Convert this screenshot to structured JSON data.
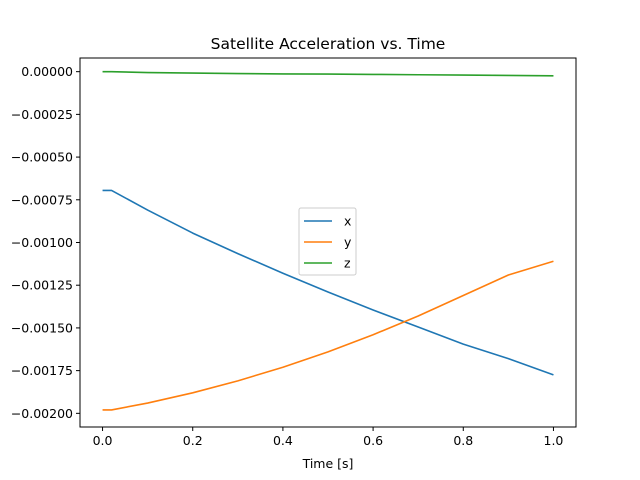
{
  "chart_data": {
    "type": "line",
    "title": "Satellite Acceleration vs. Time",
    "xlabel": "Time [s]",
    "ylabel": "",
    "xlim": [
      -0.05,
      1.05
    ],
    "ylim": [
      -0.00208,
      8e-05
    ],
    "xticks": [
      0.0,
      0.2,
      0.4,
      0.6,
      0.8,
      1.0
    ],
    "xtick_labels": [
      "0.0",
      "0.2",
      "0.4",
      "0.6",
      "0.8",
      "1.0"
    ],
    "yticks": [
      0.0,
      -0.00025,
      -0.0005,
      -0.00075,
      -0.001,
      -0.00125,
      -0.0015,
      -0.00175,
      -0.002
    ],
    "ytick_labels": [
      "0.00000",
      "−0.00025",
      "−0.00050",
      "−0.00075",
      "−0.00100",
      "−0.00125",
      "−0.00150",
      "−0.00175",
      "−0.00200"
    ],
    "grid": false,
    "legend_position": "center",
    "x": [
      0.0,
      0.02,
      0.1,
      0.2,
      0.3,
      0.4,
      0.5,
      0.6,
      0.7,
      0.8,
      0.9,
      1.0
    ],
    "series": [
      {
        "name": "x",
        "color": "#1f77b4",
        "values": [
          -0.000695,
          -0.000695,
          -0.00081,
          -0.000945,
          -0.001065,
          -0.00118,
          -0.00129,
          -0.001395,
          -0.001495,
          -0.001595,
          -0.00168,
          -0.001775
        ]
      },
      {
        "name": "y",
        "color": "#ff7f0e",
        "values": [
          -0.00198,
          -0.00198,
          -0.00194,
          -0.00188,
          -0.00181,
          -0.00173,
          -0.00164,
          -0.00154,
          -0.00143,
          -0.00131,
          -0.00119,
          -0.00111
        ]
      },
      {
        "name": "z",
        "color": "#2ca02c",
        "values": [
          0.0,
          0.0,
          -5e-06,
          -8e-06,
          -1.1e-05,
          -1.3e-05,
          -1.4e-05,
          -1.6e-05,
          -1.8e-05,
          -2e-05,
          -2.2e-05,
          -2.4e-05
        ]
      }
    ]
  }
}
